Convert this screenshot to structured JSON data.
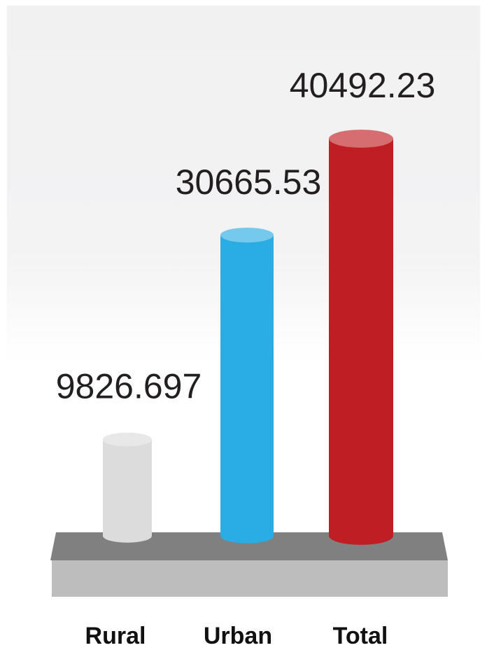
{
  "chart_data": {
    "type": "bar3d",
    "categories": [
      "Rural",
      "Urban",
      "Total"
    ],
    "values": [
      9826.697,
      30665.53,
      40492.23
    ],
    "colors": [
      "#dcdcdd",
      "#2aace4",
      "#be1e24"
    ]
  }
}
